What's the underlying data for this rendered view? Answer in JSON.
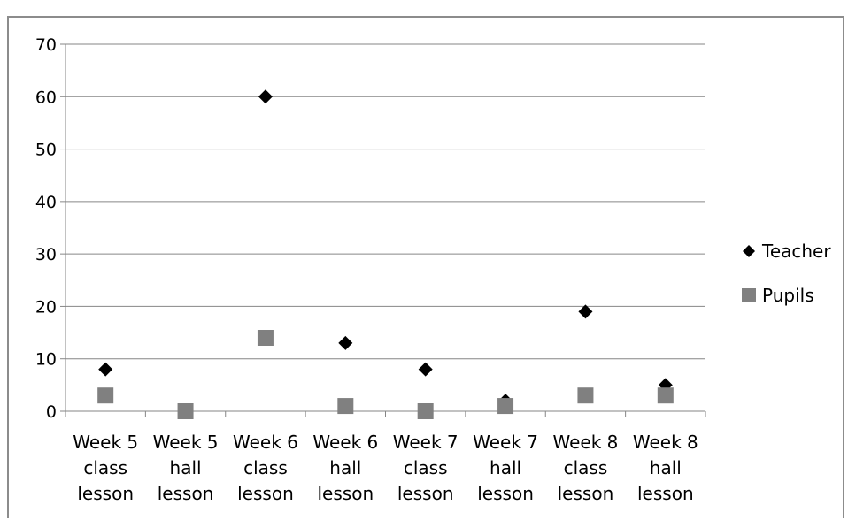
{
  "chart_data": {
    "type": "scatter",
    "title": "",
    "xlabel": "",
    "ylabel": "",
    "categories": [
      [
        "Week 5",
        "class",
        "lesson"
      ],
      [
        "Week 5",
        "hall",
        "lesson"
      ],
      [
        "Week 6",
        "class",
        "lesson"
      ],
      [
        "Week 6",
        "hall",
        "lesson"
      ],
      [
        "Week 7",
        "class",
        "lesson"
      ],
      [
        "Week 7",
        "hall",
        "lesson"
      ],
      [
        "Week 8",
        "class",
        "lesson"
      ],
      [
        "Week 8",
        "hall",
        "lesson"
      ]
    ],
    "ylim": [
      0,
      70
    ],
    "yticks": [
      "0",
      "10",
      "20",
      "30",
      "40",
      "50",
      "60",
      "70"
    ],
    "grid": true,
    "legend_position": "right",
    "series": [
      {
        "name": "Teacher",
        "marker": "diamond",
        "color": "#000000",
        "values": [
          8,
          null,
          60,
          13,
          8,
          2,
          19,
          5
        ]
      },
      {
        "name": "Pupils",
        "marker": "square",
        "color": "#808080",
        "values": [
          3,
          0,
          14,
          1,
          0,
          1,
          3,
          3
        ]
      }
    ]
  }
}
